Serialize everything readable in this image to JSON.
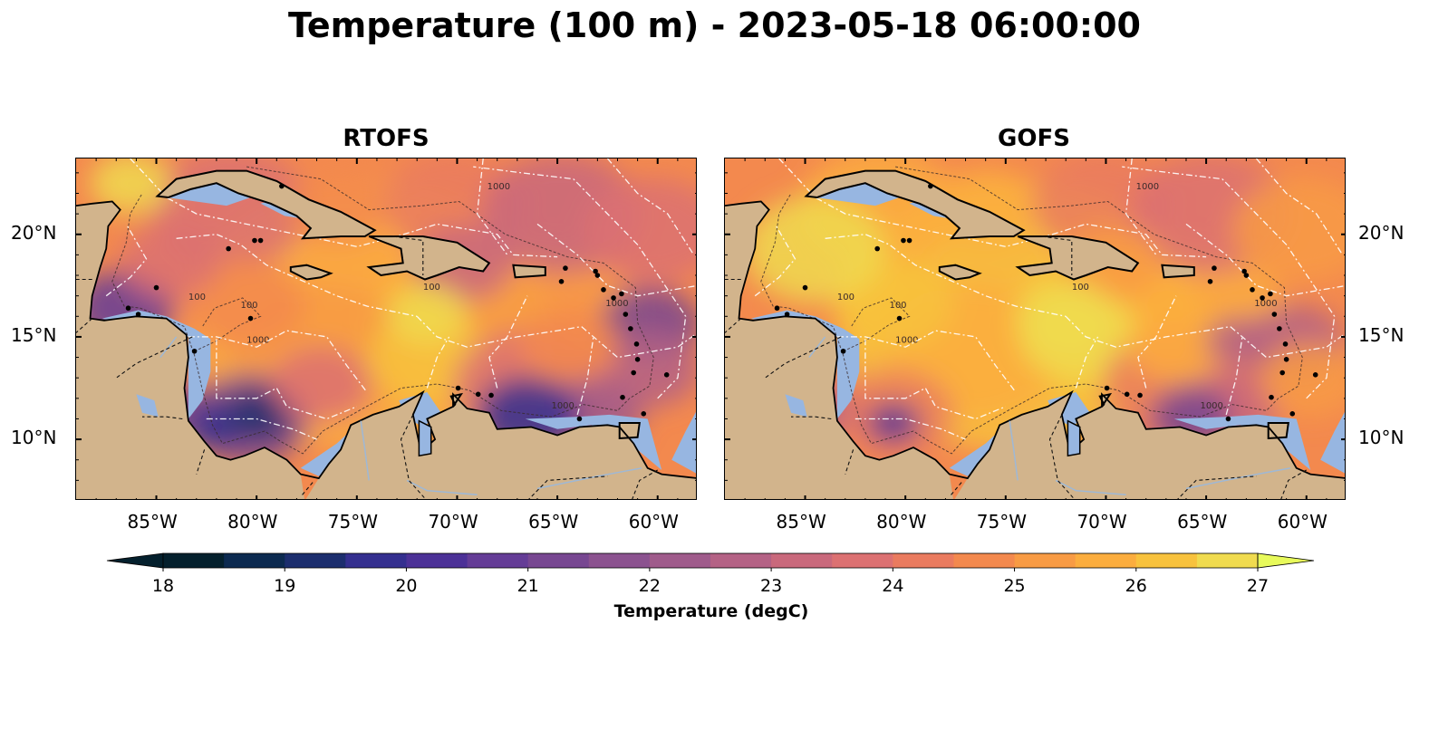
{
  "title": "Temperature (100 m) - 2023-05-18 06:00:00",
  "panels": [
    {
      "name": "RTOFS",
      "regime": "rtofs"
    },
    {
      "name": "GOFS",
      "regime": "gofs"
    }
  ],
  "map_extent": {
    "lon": [
      -89,
      -58
    ],
    "lat": [
      7,
      23.7
    ]
  },
  "lon_ticks": [
    "85°W",
    "80°W",
    "75°W",
    "70°W",
    "65°W",
    "60°W"
  ],
  "lat_ticks": [
    "20°N",
    "15°N",
    "10°N"
  ],
  "isobath_labels": [
    "1000",
    "100"
  ],
  "colors": {
    "land": "#d2b48c",
    "shelf": "#97b6e1",
    "coast": "#000000"
  },
  "colorbar": {
    "label": "Temperature (degC)",
    "min": 18,
    "max": 27,
    "step": 0.5,
    "ticks": [
      "18",
      "19",
      "20",
      "21",
      "22",
      "23",
      "24",
      "25",
      "26",
      "27"
    ],
    "colormap": [
      "#04202d",
      "#0c2a50",
      "#1c2e6e",
      "#342f8f",
      "#4c3197",
      "#643c96",
      "#774791",
      "#8b528f",
      "#9f5b8b",
      "#b46285",
      "#c9697c",
      "#dc7172",
      "#ea7b5f",
      "#f3894e",
      "#f89b44",
      "#fbad3e",
      "#f8c23d",
      "#f0db4f",
      "#e8fa5b"
    ]
  }
}
